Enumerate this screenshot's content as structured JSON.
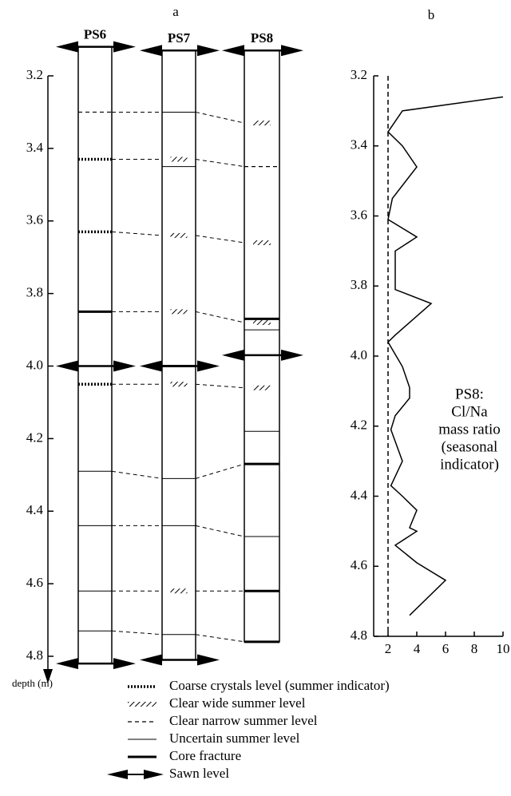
{
  "panel_a": {
    "label": "a",
    "axis_label": "depth (m)",
    "ylim": [
      3.2,
      4.8
    ],
    "yticks": [
      3.2,
      3.4,
      3.6,
      3.8,
      {
        "value": 4,
        "label": "4.0"
      },
      4.2,
      4.4,
      4.6,
      4.8
    ],
    "cores": [
      {
        "name": "PS6",
        "sawn": [
          3.12,
          4.0,
          4.82
        ],
        "bottom": 4.82,
        "levels": [
          {
            "depth": 3.3,
            "kind": "narrow"
          },
          {
            "depth": 3.43,
            "kind": "coarse"
          },
          {
            "depth": 3.63,
            "kind": "coarse"
          },
          {
            "depth": 3.85,
            "kind": "fracture"
          },
          {
            "depth": 4.0,
            "kind": "uncertain"
          },
          {
            "depth": 4.05,
            "kind": "coarse"
          },
          {
            "depth": 4.29,
            "kind": "uncertain"
          },
          {
            "depth": 4.44,
            "kind": "uncertain"
          },
          {
            "depth": 4.62,
            "kind": "uncertain"
          },
          {
            "depth": 4.73,
            "kind": "uncertain"
          }
        ]
      },
      {
        "name": "PS7",
        "sawn": [
          3.13,
          4.0,
          4.81
        ],
        "bottom": 4.81,
        "levels": [
          {
            "depth": 3.3,
            "kind": "uncertain"
          },
          {
            "depth": 3.43,
            "kind": "wide"
          },
          {
            "depth": 3.45,
            "kind": "uncertain"
          },
          {
            "depth": 3.64,
            "kind": "wide"
          },
          {
            "depth": 3.85,
            "kind": "wide"
          },
          {
            "depth": 4.0,
            "kind": "fracture"
          },
          {
            "depth": 4.05,
            "kind": "wide"
          },
          {
            "depth": 4.31,
            "kind": "uncertain"
          },
          {
            "depth": 4.44,
            "kind": "uncertain"
          },
          {
            "depth": 4.62,
            "kind": "wide"
          },
          {
            "depth": 4.74,
            "kind": "uncertain"
          }
        ]
      },
      {
        "name": "PS8",
        "sawn": [
          3.13,
          3.97
        ],
        "bottom": 4.76,
        "levels": [
          {
            "depth": 3.33,
            "kind": "wide"
          },
          {
            "depth": 3.45,
            "kind": "narrow"
          },
          {
            "depth": 3.66,
            "kind": "wide"
          },
          {
            "depth": 3.87,
            "kind": "fracture"
          },
          {
            "depth": 3.88,
            "kind": "wide"
          },
          {
            "depth": 3.9,
            "kind": "uncertain"
          },
          {
            "depth": 3.97,
            "kind": "uncertain"
          },
          {
            "depth": 4.06,
            "kind": "wide"
          },
          {
            "depth": 4.18,
            "kind": "uncertain"
          },
          {
            "depth": 4.27,
            "kind": "fracture"
          },
          {
            "depth": 4.47,
            "kind": "uncertain"
          },
          {
            "depth": 4.62,
            "kind": "fracture"
          },
          {
            "depth": 4.76,
            "kind": "fracture"
          }
        ]
      }
    ],
    "correlations": [
      [
        3.3,
        3.3,
        3.33
      ],
      [
        3.43,
        3.43,
        3.45
      ],
      [
        3.63,
        3.64,
        3.66
      ],
      [
        3.85,
        3.85,
        3.88
      ],
      [
        4.05,
        4.05,
        4.06
      ],
      [
        4.29,
        4.31,
        4.27
      ],
      [
        4.44,
        4.44,
        4.47
      ],
      [
        4.62,
        4.62,
        4.62
      ],
      [
        4.73,
        4.74,
        4.76
      ]
    ]
  },
  "chart_data": {
    "type": "line",
    "label": "b",
    "x": [
      10,
      3,
      2,
      3,
      4,
      2.3,
      2,
      4,
      2.5,
      2.5,
      5,
      2.5,
      2,
      3,
      3.5,
      3.5,
      2.5,
      2.2,
      3,
      2.2,
      3,
      4,
      3.5,
      4,
      2.5,
      4,
      6,
      3.5
    ],
    "y": [
      3.26,
      3.3,
      3.36,
      3.4,
      3.46,
      3.55,
      3.61,
      3.66,
      3.7,
      3.81,
      3.85,
      3.94,
      3.96,
      4.03,
      4.09,
      4.12,
      4.17,
      4.21,
      4.3,
      4.37,
      4.4,
      4.44,
      4.49,
      4.5,
      4.54,
      4.59,
      4.64,
      4.74
    ],
    "xlim": [
      1,
      10
    ],
    "xticks": [
      2,
      4,
      6,
      8,
      10
    ],
    "ylim": [
      3.2,
      4.8
    ],
    "yticks": [
      3.2,
      3.4,
      3.6,
      3.8,
      {
        "value": 4,
        "label": "4.0"
      },
      4.2,
      4.4,
      4.6,
      4.8
    ],
    "reference_x": 2,
    "annotation": [
      "PS8:",
      "Cl/Na",
      "mass ratio",
      "(seasonal",
      "indicator)"
    ]
  },
  "legend": [
    {
      "kind": "coarse",
      "label": "Coarse crystals level (summer indicator)"
    },
    {
      "kind": "wide",
      "label": "Clear wide summer level"
    },
    {
      "kind": "narrow",
      "label": "Clear narrow summer level"
    },
    {
      "kind": "uncertain",
      "label": "Uncertain summer level"
    },
    {
      "kind": "fracture",
      "label": "Core fracture"
    },
    {
      "kind": "sawn",
      "label": "Sawn level"
    }
  ]
}
